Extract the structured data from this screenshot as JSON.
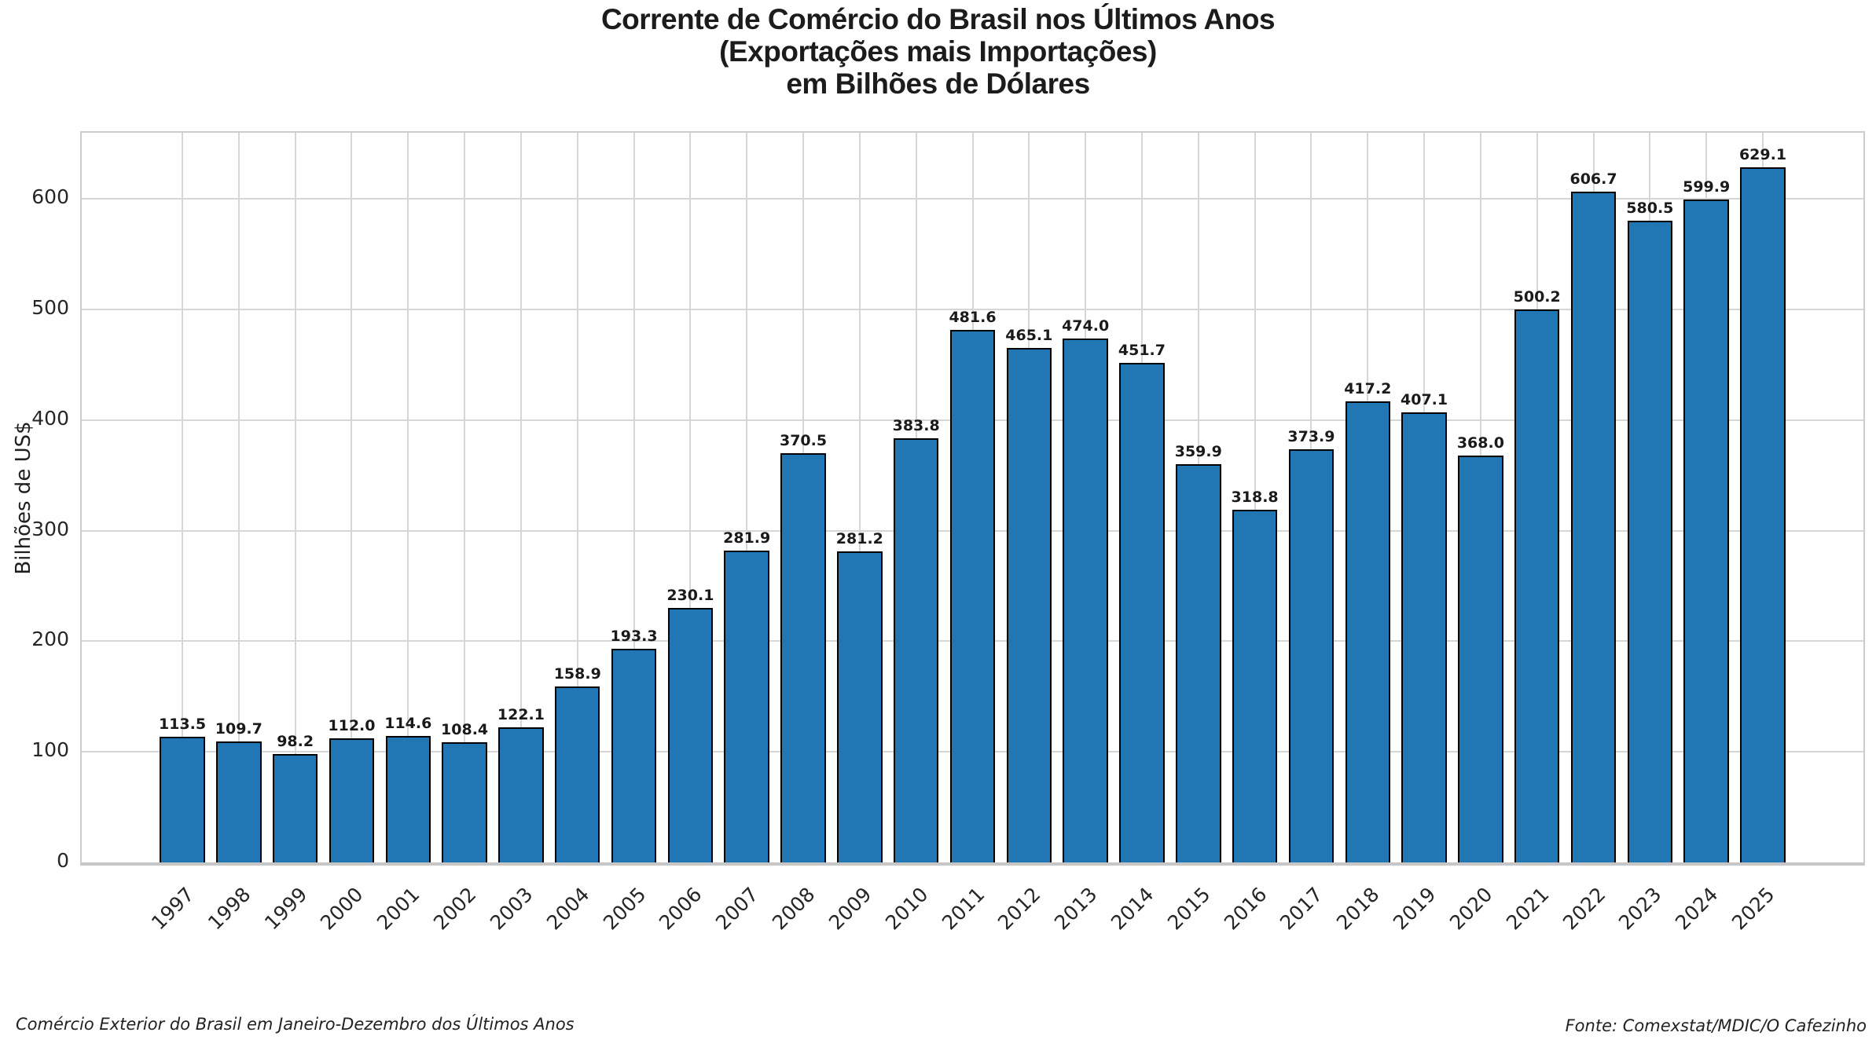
{
  "title": {
    "line1": "Corrente de Comércio do Brasil nos Últimos Anos",
    "line2": "(Exportações mais Importações)",
    "line3": "em Bilhões de Dólares"
  },
  "footer": {
    "left": "Comércio Exterior do Brasil em Janeiro-Dezembro dos Últimos Anos",
    "right": "Fonte: Comexstat/MDIC/O Cafezinho"
  },
  "chart_data": {
    "type": "bar",
    "title": "Corrente de Comércio do Brasil nos Últimos Anos (Exportações mais Importações) em Bilhões de Dólares",
    "title_lines": [
      "Corrente de Comércio do Brasil nos Últimos Anos",
      "(Exportações mais Importações)",
      "em Bilhões de Dólares"
    ],
    "categories": [
      "1997",
      "1998",
      "1999",
      "2000",
      "2001",
      "2002",
      "2003",
      "2004",
      "2005",
      "2006",
      "2007",
      "2008",
      "2009",
      "2010",
      "2011",
      "2012",
      "2013",
      "2014",
      "2015",
      "2016",
      "2017",
      "2018",
      "2019",
      "2020",
      "2021",
      "2022",
      "2023",
      "2024",
      "2025"
    ],
    "values": [
      113.5,
      109.7,
      98.2,
      112.0,
      114.6,
      108.4,
      122.1,
      158.9,
      193.3,
      230.1,
      281.9,
      370.5,
      281.2,
      383.8,
      481.6,
      465.1,
      474.0,
      451.7,
      359.9,
      318.8,
      373.9,
      417.2,
      407.1,
      368.0,
      500.2,
      606.7,
      580.5,
      599.9,
      629.1
    ],
    "xlabel": "",
    "ylabel": "Bilhões de US$",
    "yticks": [
      0,
      100,
      200,
      300,
      400,
      500,
      600
    ],
    "ylim": [
      0,
      660
    ],
    "grid": true,
    "legend": "none",
    "value_labels": true,
    "bar_color": "#2077b4",
    "bar_edge_color": "#000000",
    "grid_color": "#d6d6d6",
    "value_label_format": "one-decimal"
  }
}
